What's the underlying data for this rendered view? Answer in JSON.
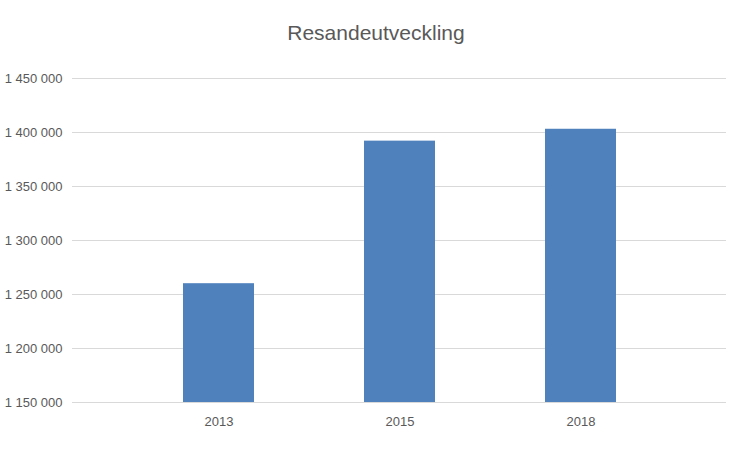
{
  "chart_data": {
    "type": "bar",
    "title": "Resandeutveckling",
    "categories": [
      "2013",
      "2015",
      "2018"
    ],
    "values": [
      1260000,
      1392000,
      1403000
    ],
    "color": "#4f81bd",
    "ylim": [
      1150000,
      1450000
    ],
    "yticks": [
      {
        "value": 1150000,
        "label": "1 150 000"
      },
      {
        "value": 1200000,
        "label": "1 200 000"
      },
      {
        "value": 1250000,
        "label": "1 250 000"
      },
      {
        "value": 1300000,
        "label": "1 300 000"
      },
      {
        "value": 1350000,
        "label": "1 350 000"
      },
      {
        "value": 1400000,
        "label": "1 400 000"
      },
      {
        "value": 1450000,
        "label": "1 450 000"
      }
    ],
    "grid": true
  }
}
